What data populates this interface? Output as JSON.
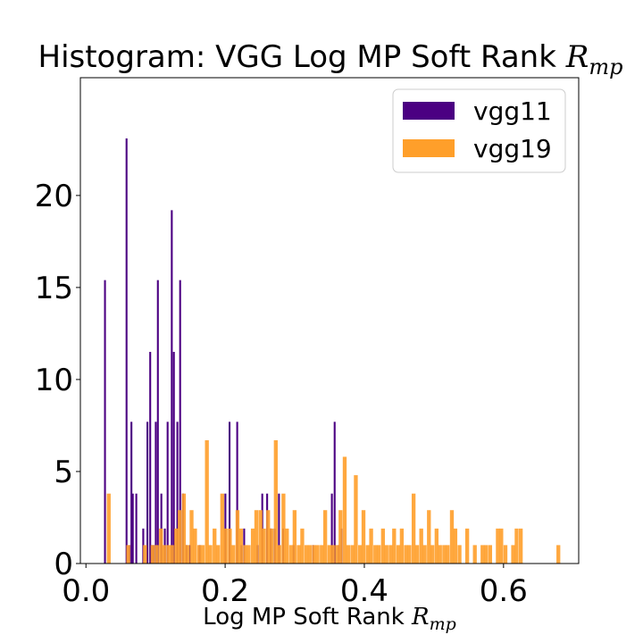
{
  "chart_data": {
    "type": "bar",
    "title_text": "Histogram: VGG Log MP Soft Rank",
    "title_symbol": "R",
    "title_subscript": "mp",
    "xlabel_text": "Log MP Soft Rank",
    "xlabel_symbol": "R",
    "xlabel_subscript": "mp",
    "ylabel": "",
    "xlim": [
      -0.008,
      0.708
    ],
    "ylim": [
      0,
      26.4
    ],
    "x_ticks": [
      0.0,
      0.2,
      0.4,
      0.6
    ],
    "x_tick_labels": [
      "0.0",
      "0.2",
      "0.4",
      "0.6"
    ],
    "y_ticks": [
      0,
      5,
      10,
      15,
      20
    ],
    "y_tick_labels": [
      "0",
      "5",
      "10",
      "15",
      "20"
    ],
    "grid": false,
    "legend_position": "top-right",
    "series": [
      {
        "name": "vgg11",
        "color": "#4b0082",
        "bin_width": 0.0027,
        "bins": [
          [
            0.026,
            15.4
          ],
          [
            0.057,
            23.1
          ],
          [
            0.061,
            1.0
          ],
          [
            0.064,
            7.7
          ],
          [
            0.066,
            3.8
          ],
          [
            0.071,
            3.8
          ],
          [
            0.081,
            1.9
          ],
          [
            0.087,
            7.7
          ],
          [
            0.091,
            11.5
          ],
          [
            0.093,
            1.0
          ],
          [
            0.096,
            1.0
          ],
          [
            0.099,
            7.7
          ],
          [
            0.102,
            15.4
          ],
          [
            0.107,
            3.8
          ],
          [
            0.112,
            1.9
          ],
          [
            0.116,
            7.7
          ],
          [
            0.122,
            19.2
          ],
          [
            0.125,
            11.5
          ],
          [
            0.13,
            7.7
          ],
          [
            0.134,
            15.4
          ],
          [
            0.138,
            3.8
          ],
          [
            0.143,
            1.0
          ],
          [
            0.148,
            1.0
          ],
          [
            0.162,
            1.0
          ],
          [
            0.199,
            3.8
          ],
          [
            0.205,
            7.7
          ],
          [
            0.216,
            7.7
          ],
          [
            0.222,
            1.0
          ],
          [
            0.226,
            1.9
          ],
          [
            0.245,
            1.0
          ],
          [
            0.252,
            3.8
          ],
          [
            0.259,
            3.8
          ],
          [
            0.264,
            1.9
          ],
          [
            0.27,
            1.9
          ],
          [
            0.276,
            3.8
          ],
          [
            0.282,
            1.9
          ],
          [
            0.297,
            1.0
          ],
          [
            0.325,
            1.0
          ],
          [
            0.352,
            3.8
          ],
          [
            0.356,
            7.7
          ],
          [
            0.362,
            1.0
          ],
          [
            0.366,
            1.9
          ]
        ]
      },
      {
        "name": "vgg19",
        "color": "#ff9f2a",
        "bin_width": 0.00555,
        "bins": [
          [
            0.03,
            3.8
          ],
          [
            0.058,
            1.0
          ],
          [
            0.082,
            1.0
          ],
          [
            0.093,
            1.0
          ],
          [
            0.099,
            1.0
          ],
          [
            0.105,
            1.9
          ],
          [
            0.11,
            1.0
          ],
          [
            0.116,
            1.0
          ],
          [
            0.121,
            1.0
          ],
          [
            0.127,
            1.9
          ],
          [
            0.132,
            2.9
          ],
          [
            0.138,
            3.8
          ],
          [
            0.143,
            1.0
          ],
          [
            0.149,
            2.9
          ],
          [
            0.154,
            1.9
          ],
          [
            0.16,
            1.0
          ],
          [
            0.165,
            1.0
          ],
          [
            0.171,
            6.7
          ],
          [
            0.176,
            1.0
          ],
          [
            0.182,
            1.9
          ],
          [
            0.187,
            1.0
          ],
          [
            0.193,
            3.8
          ],
          [
            0.198,
            1.9
          ],
          [
            0.204,
            1.9
          ],
          [
            0.209,
            1.0
          ],
          [
            0.215,
            2.9
          ],
          [
            0.22,
            1.9
          ],
          [
            0.226,
            1.0
          ],
          [
            0.231,
            1.0
          ],
          [
            0.237,
            1.9
          ],
          [
            0.242,
            2.9
          ],
          [
            0.248,
            2.9
          ],
          [
            0.253,
            1.9
          ],
          [
            0.259,
            2.9
          ],
          [
            0.264,
            1.9
          ],
          [
            0.27,
            6.7
          ],
          [
            0.275,
            1.0
          ],
          [
            0.281,
            3.8
          ],
          [
            0.286,
            1.9
          ],
          [
            0.292,
            1.0
          ],
          [
            0.297,
            2.9
          ],
          [
            0.303,
            1.0
          ],
          [
            0.308,
            1.9
          ],
          [
            0.314,
            1.0
          ],
          [
            0.319,
            1.0
          ],
          [
            0.325,
            1.0
          ],
          [
            0.33,
            1.0
          ],
          [
            0.336,
            1.0
          ],
          [
            0.341,
            2.9
          ],
          [
            0.347,
            1.0
          ],
          [
            0.352,
            1.0
          ],
          [
            0.358,
            1.0
          ],
          [
            0.363,
            2.9
          ],
          [
            0.369,
            5.8
          ],
          [
            0.374,
            1.0
          ],
          [
            0.38,
            1.0
          ],
          [
            0.385,
            4.8
          ],
          [
            0.391,
            1.0
          ],
          [
            0.396,
            2.9
          ],
          [
            0.402,
            1.0
          ],
          [
            0.407,
            1.9
          ],
          [
            0.413,
            1.0
          ],
          [
            0.418,
            1.0
          ],
          [
            0.424,
            1.9
          ],
          [
            0.429,
            1.0
          ],
          [
            0.435,
            1.0
          ],
          [
            0.44,
            1.9
          ],
          [
            0.446,
            1.0
          ],
          [
            0.451,
            1.9
          ],
          [
            0.457,
            1.0
          ],
          [
            0.462,
            1.0
          ],
          [
            0.468,
            3.8
          ],
          [
            0.473,
            1.0
          ],
          [
            0.479,
            1.9
          ],
          [
            0.484,
            1.0
          ],
          [
            0.49,
            2.9
          ],
          [
            0.495,
            1.0
          ],
          [
            0.501,
            1.9
          ],
          [
            0.506,
            1.0
          ],
          [
            0.512,
            1.0
          ],
          [
            0.517,
            1.0
          ],
          [
            0.523,
            2.9
          ],
          [
            0.528,
            1.9
          ],
          [
            0.534,
            1.0
          ],
          [
            0.545,
            1.9
          ],
          [
            0.556,
            1.0
          ],
          [
            0.567,
            1.0
          ],
          [
            0.572,
            1.0
          ],
          [
            0.578,
            1.0
          ],
          [
            0.589,
            1.9
          ],
          [
            0.594,
            1.9
          ],
          [
            0.6,
            1.0
          ],
          [
            0.611,
            1.0
          ],
          [
            0.616,
            1.9
          ],
          [
            0.622,
            1.9
          ],
          [
            0.676,
            1.0
          ]
        ]
      }
    ]
  }
}
